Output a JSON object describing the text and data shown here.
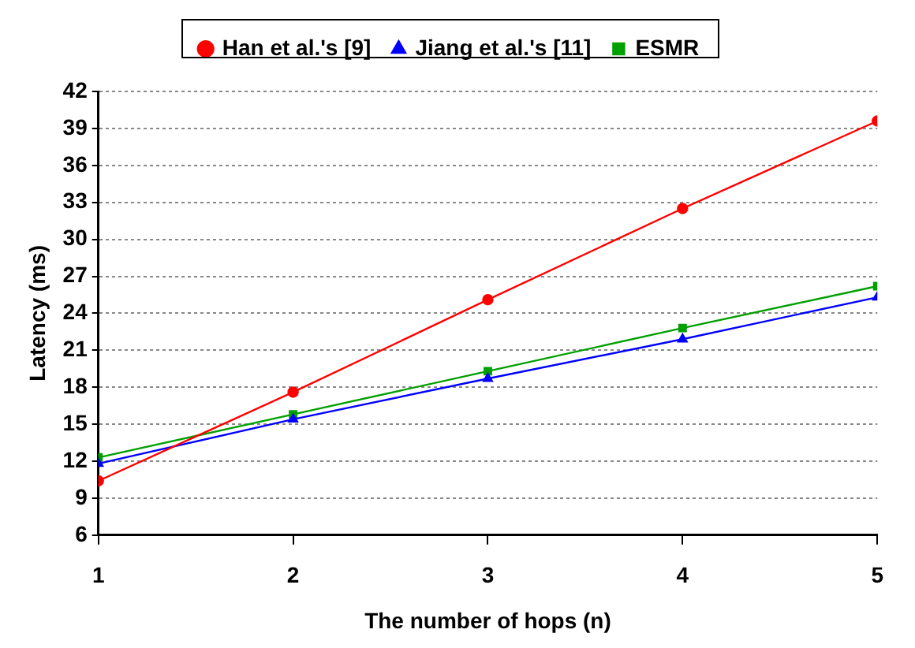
{
  "chart_data": {
    "type": "line",
    "xlabel": "The number of hops (n)",
    "ylabel": "Latency (ms)",
    "x": [
      1,
      2,
      3,
      4,
      5
    ],
    "series": [
      {
        "name": "Han et al.'s [9]",
        "color": "#ff0000",
        "marker": "circle",
        "values": [
          10.4,
          17.6,
          25.1,
          32.5,
          39.6
        ]
      },
      {
        "name": "Jiang et al.'s [11]",
        "color": "#0000ff",
        "marker": "triangle",
        "values": [
          11.8,
          15.4,
          18.7,
          21.9,
          25.3
        ]
      },
      {
        "name": "ESMR",
        "color": "#00a000",
        "marker": "square",
        "values": [
          12.3,
          15.8,
          19.3,
          22.8,
          26.2
        ]
      }
    ],
    "xlim": [
      1,
      5
    ],
    "xticks": [
      1,
      2,
      3,
      4,
      5
    ],
    "ylim": [
      6,
      42
    ],
    "yticks": [
      6,
      9,
      12,
      15,
      18,
      21,
      24,
      27,
      30,
      33,
      36,
      39,
      42
    ],
    "grid": "y",
    "legend": "top",
    "line_style": "solid"
  }
}
